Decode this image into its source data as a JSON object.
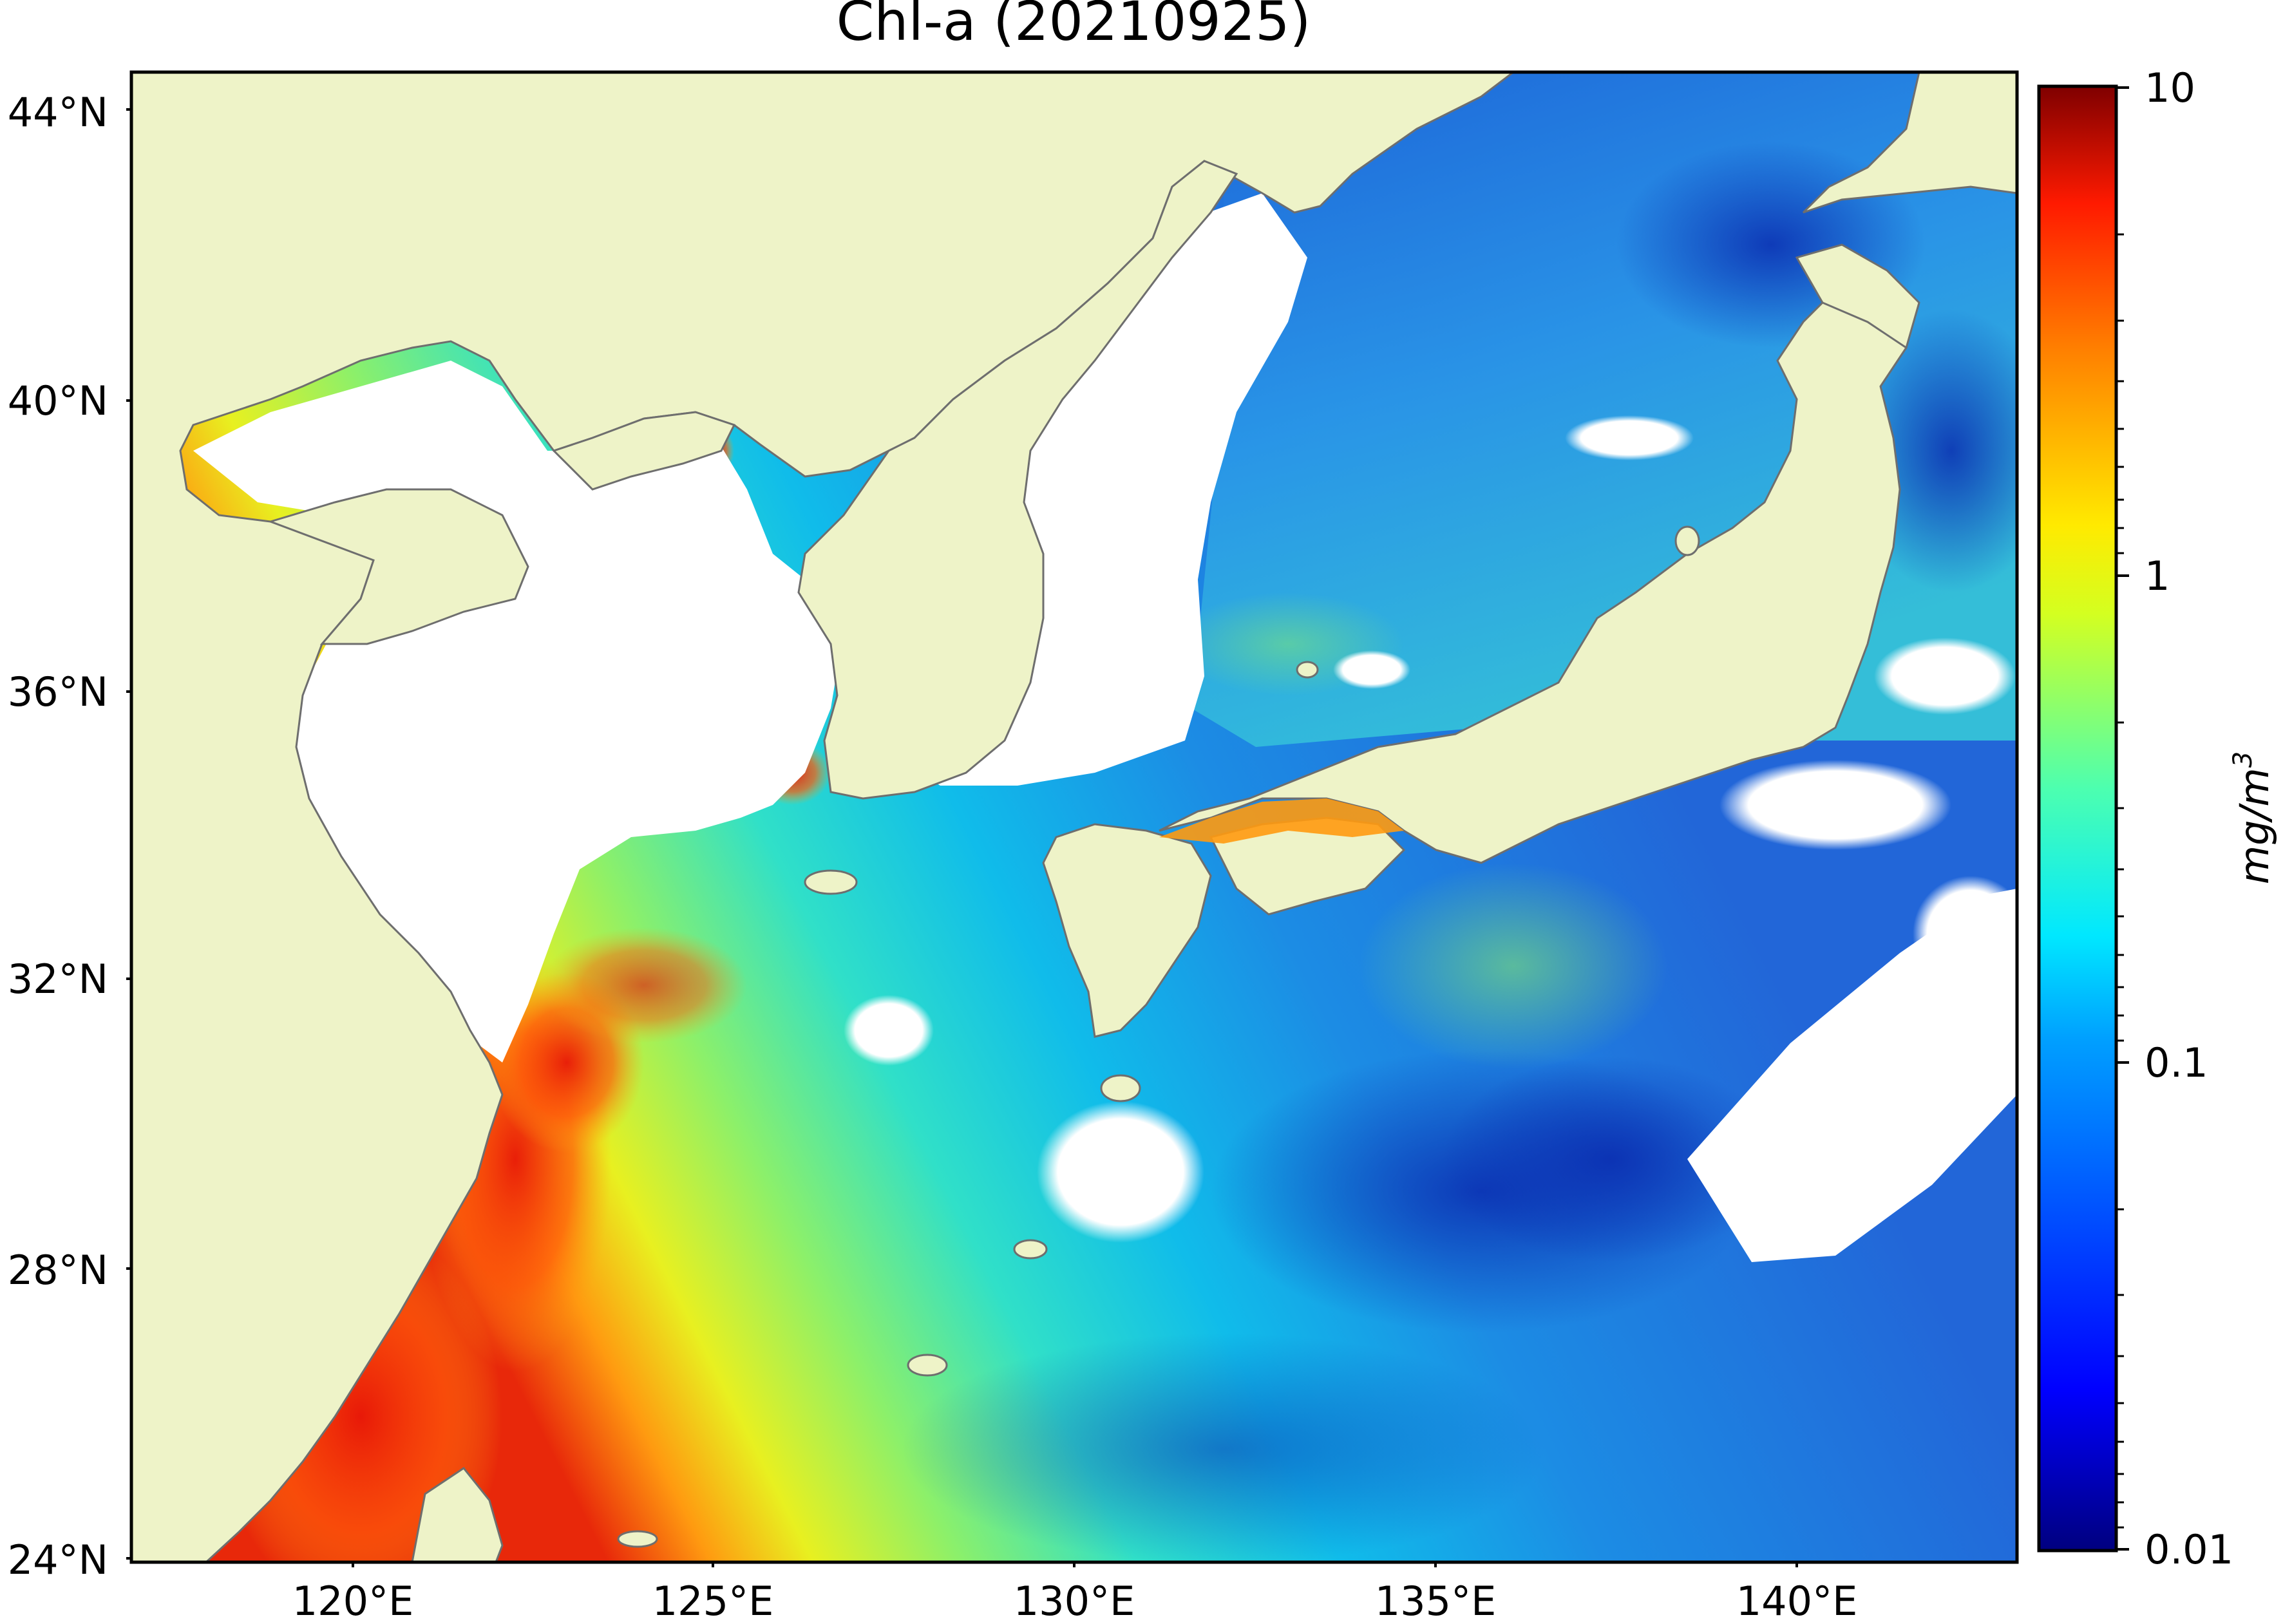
{
  "title": "Chl-a (20210925)",
  "map": {
    "lat_ticks": [
      "44°N",
      "40°N",
      "36°N",
      "32°N",
      "28°N",
      "24°N"
    ],
    "lon_ticks": [
      "120°E",
      "125°E",
      "130°E",
      "135°E",
      "140°E"
    ],
    "lat_range": [
      24,
      44.5
    ],
    "lon_range": [
      116.9,
      143.2
    ],
    "colors": {
      "land": "#EEF3C8",
      "no_data": "#FFFFFF",
      "coastline": "#6E6E6E",
      "frame": "#000000"
    }
  },
  "colorbar": {
    "scale": "log",
    "range": [
      0.01,
      10
    ],
    "ticks": [
      "10",
      "1",
      "0.1",
      "0.01"
    ],
    "label": "mg/m",
    "label_superscript": "3",
    "colormap": "jet",
    "colormap_stops": [
      "#00007F",
      "#0000FF",
      "#007FFF",
      "#00FFFF",
      "#7FFF7F",
      "#FFFF00",
      "#FF7F00",
      "#FF0000",
      "#7F0000"
    ]
  }
}
